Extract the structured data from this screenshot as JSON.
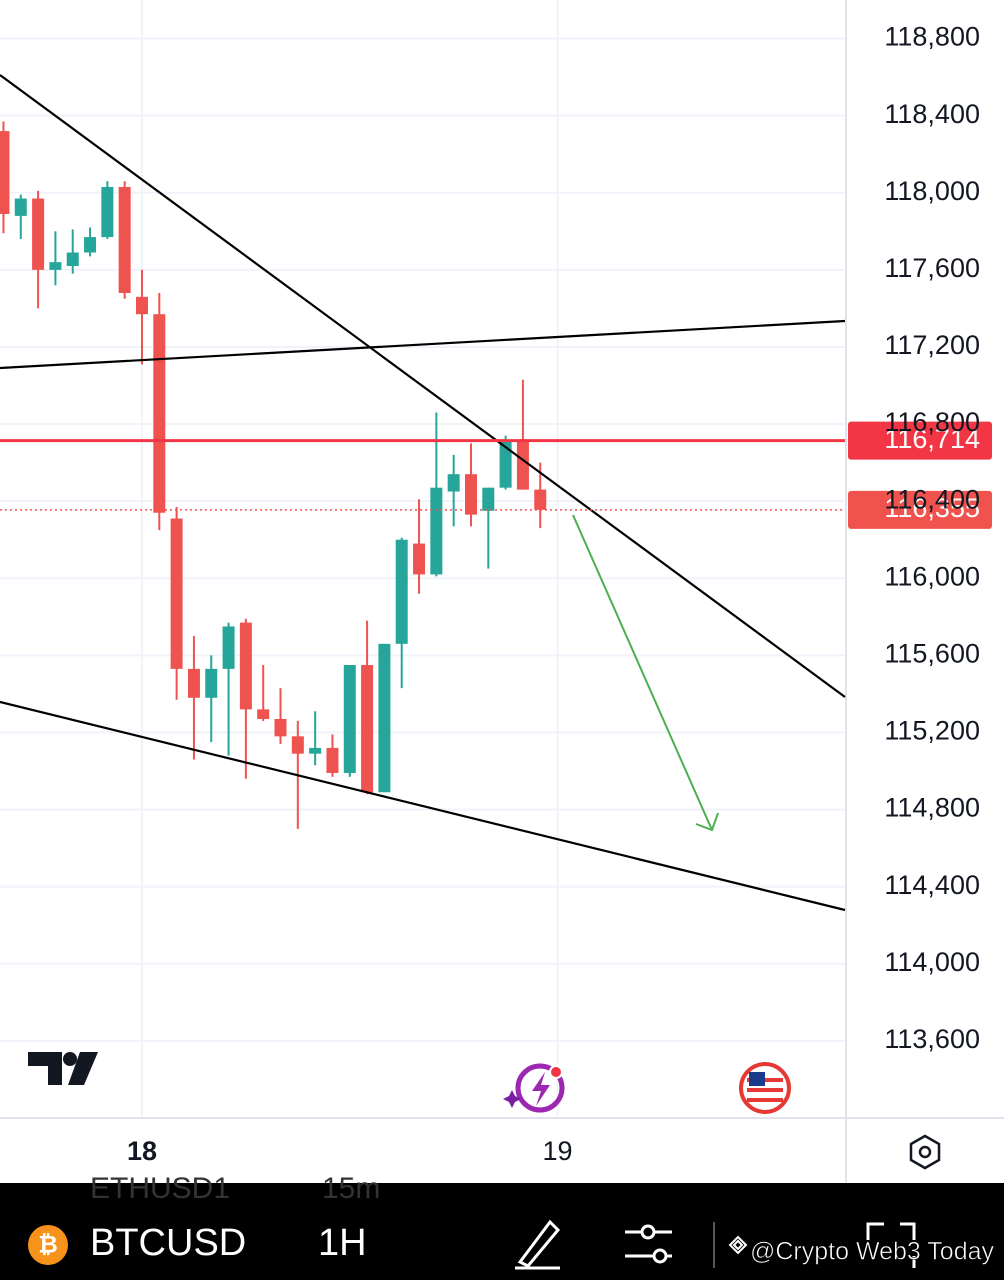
{
  "chart_data": {
    "type": "candlestick",
    "x": [
      -8,
      -7,
      -6,
      -5,
      -4,
      -3,
      -2,
      -1,
      0,
      1,
      2,
      3,
      4,
      5,
      6,
      7,
      8,
      9,
      10,
      11,
      12,
      13,
      14,
      15,
      16,
      17,
      18,
      19,
      20,
      21,
      22,
      23
    ],
    "open": [
      118320,
      117880,
      117970,
      117600,
      117620,
      117690,
      117770,
      118030,
      117460,
      117370,
      116310,
      115530,
      115380,
      115530,
      115770,
      115320,
      115270,
      115180,
      115090,
      115120,
      114990,
      115550,
      114890,
      115660,
      116180,
      116020,
      116450,
      116540,
      116350,
      116470,
      116710,
      116460
    ],
    "high": [
      118370,
      117990,
      118010,
      117800,
      117810,
      117820,
      118060,
      118060,
      117600,
      117480,
      116370,
      115700,
      115600,
      115770,
      115790,
      115550,
      115430,
      115260,
      115310,
      115190,
      115550,
      115780,
      115660,
      116210,
      116410,
      116860,
      116640,
      116700,
      116470,
      116740,
      117030,
      116600
    ],
    "low": [
      117790,
      117760,
      117400,
      117520,
      117580,
      117670,
      117760,
      117450,
      117110,
      116250,
      115370,
      115060,
      115150,
      115080,
      114960,
      115260,
      115140,
      114700,
      115030,
      114970,
      114970,
      114880,
      114890,
      115430,
      115920,
      116010,
      116270,
      116270,
      116050,
      116460,
      116460,
      116260
    ],
    "close": [
      117890,
      117970,
      117600,
      117640,
      117690,
      117770,
      118030,
      117480,
      117370,
      116340,
      115530,
      115380,
      115530,
      115750,
      115320,
      115270,
      115180,
      115090,
      115120,
      114990,
      115550,
      114890,
      115660,
      116200,
      116020,
      116470,
      116540,
      116330,
      116470,
      116710,
      116460,
      116355
    ],
    "up_color": "#26a69a",
    "down_color": "#ef5350",
    "xlim": [
      -8.2,
      40.6
    ],
    "xticks": [
      {
        "value": 0,
        "label": "18"
      },
      {
        "value": 24,
        "label": "19"
      }
    ],
    "ylim": [
      113200,
      119000
    ],
    "yticks": [
      {
        "value": 113600,
        "label": "113,600"
      },
      {
        "value": 114000,
        "label": "114,000"
      },
      {
        "value": 114400,
        "label": "114,400"
      },
      {
        "value": 114800,
        "label": "114,800"
      },
      {
        "value": 115200,
        "label": "115,200"
      },
      {
        "value": 115600,
        "label": "115,600"
      },
      {
        "value": 116000,
        "label": "116,000"
      },
      {
        "value": 116400,
        "label": "116,400"
      },
      {
        "value": 116800,
        "label": "116,800"
      },
      {
        "value": 117200,
        "label": "117,200"
      },
      {
        "value": 117600,
        "label": "117,600"
      },
      {
        "value": 118000,
        "label": "118,000"
      },
      {
        "value": 118400,
        "label": "118,400"
      },
      {
        "value": 118800,
        "label": "118,800"
      }
    ],
    "grid": true,
    "price_lines": [
      {
        "value": 116714,
        "label": "116,714",
        "color": "#f23645",
        "style": "solid"
      },
      {
        "value": 116355,
        "label": "116,355",
        "color": "#f0524d",
        "style": "dotted"
      }
    ]
  },
  "toolbar": {
    "symbol": "BTCUSD",
    "interval": "1H",
    "ghost_symbol": "ETHUSD1",
    "ghost_interval": "15m"
  },
  "watermark": "@Crypto Web3 Today"
}
